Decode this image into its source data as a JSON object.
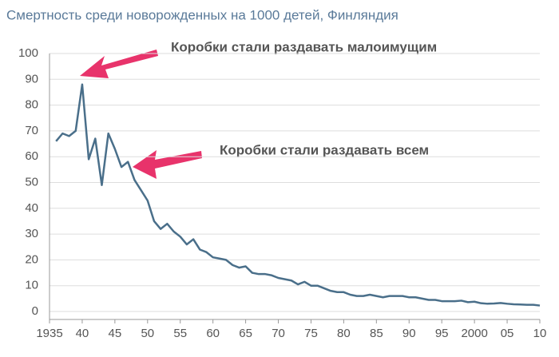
{
  "chart_data": {
    "type": "line",
    "title": "Смертность среди новорожденных на 1000 детей, Финляндия",
    "x": [
      1936,
      1937,
      1938,
      1939,
      1940,
      1941,
      1942,
      1943,
      1944,
      1945,
      1946,
      1947,
      1948,
      1949,
      1950,
      1951,
      1952,
      1953,
      1954,
      1955,
      1956,
      1957,
      1958,
      1959,
      1960,
      1961,
      1962,
      1963,
      1964,
      1965,
      1966,
      1967,
      1968,
      1969,
      1970,
      1971,
      1972,
      1973,
      1974,
      1975,
      1976,
      1977,
      1978,
      1979,
      1980,
      1981,
      1982,
      1983,
      1984,
      1985,
      1986,
      1987,
      1988,
      1989,
      1990,
      1991,
      1992,
      1993,
      1994,
      1995,
      1996,
      1997,
      1998,
      1999,
      2000,
      2001,
      2002,
      2003,
      2004,
      2005,
      2006,
      2007,
      2008,
      2009,
      2010
    ],
    "values": [
      66,
      69,
      68,
      70,
      88,
      59,
      67,
      49,
      69,
      63,
      56,
      58,
      51,
      47,
      43,
      35,
      32,
      34,
      31,
      29,
      26,
      28,
      24,
      23,
      21,
      20.5,
      20,
      18,
      17,
      17.5,
      15,
      14.5,
      14.5,
      14,
      13,
      12.5,
      12,
      10.5,
      11.5,
      10,
      10,
      9,
      8,
      7.5,
      7.5,
      6.5,
      6,
      6,
      6.5,
      6,
      5.5,
      6,
      6,
      6,
      5.5,
      5.5,
      5,
      4.5,
      4.5,
      4,
      4,
      4,
      4.2,
      3.6,
      3.8,
      3.2,
      3,
      3.1,
      3.3,
      3,
      2.8,
      2.7,
      2.6,
      2.6,
      2.3
    ],
    "color": "#4a6f8a",
    "xlim": [
      1935,
      2010
    ],
    "xticks": [
      1935,
      {
        "value": 1940,
        "label": "40"
      },
      {
        "value": 1945,
        "label": "45"
      },
      {
        "value": 1950,
        "label": "50"
      },
      {
        "value": 1955,
        "label": "55"
      },
      {
        "value": 1960,
        "label": "60"
      },
      {
        "value": 1965,
        "label": "65"
      },
      {
        "value": 1970,
        "label": "70"
      },
      {
        "value": 1975,
        "label": "75"
      },
      {
        "value": 1980,
        "label": "80"
      },
      {
        "value": 1985,
        "label": "85"
      },
      {
        "value": 1990,
        "label": "90"
      },
      {
        "value": 1995,
        "label": "95"
      },
      2000,
      {
        "value": 2005,
        "label": "05"
      },
      {
        "value": 2010,
        "label": "10"
      }
    ],
    "ylim": [
      0,
      100
    ],
    "yticks": [
      0,
      10,
      20,
      30,
      40,
      50,
      60,
      70,
      80,
      90,
      100
    ],
    "grid": true,
    "annotations": [
      "Коробки стали раздавать малоимущим",
      "Коробки стали раздавать всем"
    ],
    "annotation_color": "#e8336b"
  }
}
